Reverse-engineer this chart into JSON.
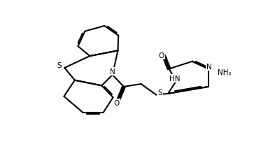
{
  "bg_color": "#ffffff",
  "line_color": "#000000",
  "lw": 1.5,
  "fs": 7.5,
  "figsize": [
    3.73,
    2.07
  ],
  "dpi": 100,
  "atoms": {
    "comment": "all coords in image space (x right, y down), converted in code"
  }
}
